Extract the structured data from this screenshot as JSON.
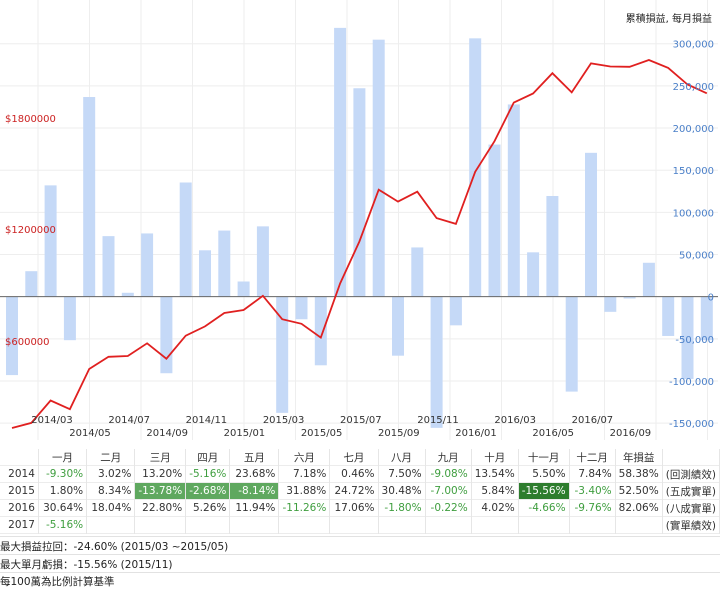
{
  "chart_data": {
    "type": "bar+line",
    "legend": "累積損益, 每月損益",
    "x_ticks_upper": [
      "2014/03",
      "2014/07",
      "2014/11",
      "2015/03",
      "2015/07",
      "2015/11",
      "2016/03",
      "2016/07"
    ],
    "x_ticks_lower": [
      "2014/05",
      "2014/09",
      "2015/01",
      "2015/05",
      "2015/09",
      "2016/01",
      "2016/05",
      "2016/09"
    ],
    "right_axis": {
      "ticks": [
        -150000,
        -100000,
        -50000,
        0,
        50000,
        100000,
        150000,
        200000,
        250000,
        300000
      ],
      "labels": [
        "-150,000",
        "-100,000",
        "-50,000",
        "0",
        "50,000",
        "100,000",
        "150,000",
        "200,000",
        "250,000",
        "300,000"
      ],
      "range": [
        -170000,
        340000
      ]
    },
    "left_axis": {
      "labels": [
        "$1800000",
        "$1200000",
        "$600000"
      ],
      "ticks": [
        1800000,
        1200000,
        600000
      ]
    },
    "monthly": [
      {
        "m": "2014/01",
        "v": -9.3
      },
      {
        "m": "2014/02",
        "v": 3.02
      },
      {
        "m": "2014/03",
        "v": 13.2
      },
      {
        "m": "2014/04",
        "v": -5.16
      },
      {
        "m": "2014/05",
        "v": 23.68
      },
      {
        "m": "2014/06",
        "v": 7.18
      },
      {
        "m": "2014/07",
        "v": 0.46
      },
      {
        "m": "2014/08",
        "v": 7.5
      },
      {
        "m": "2014/09",
        "v": -9.08
      },
      {
        "m": "2014/10",
        "v": 13.54
      },
      {
        "m": "2014/11",
        "v": 5.5
      },
      {
        "m": "2014/12",
        "v": 7.84
      },
      {
        "m": "2015/01",
        "v": 1.8
      },
      {
        "m": "2015/02",
        "v": 8.34
      },
      {
        "m": "2015/03",
        "v": -13.78
      },
      {
        "m": "2015/04",
        "v": -2.68
      },
      {
        "m": "2015/05",
        "v": -8.14
      },
      {
        "m": "2015/06",
        "v": 31.88
      },
      {
        "m": "2015/07",
        "v": 24.72
      },
      {
        "m": "2015/08",
        "v": 30.48
      },
      {
        "m": "2015/09",
        "v": -7.0
      },
      {
        "m": "2015/10",
        "v": 5.84
      },
      {
        "m": "2015/11",
        "v": -15.56
      },
      {
        "m": "2015/12",
        "v": -3.4
      },
      {
        "m": "2016/01",
        "v": 30.64
      },
      {
        "m": "2016/02",
        "v": 18.04
      },
      {
        "m": "2016/03",
        "v": 22.8
      },
      {
        "m": "2016/04",
        "v": 5.26
      },
      {
        "m": "2016/05",
        "v": 11.94
      },
      {
        "m": "2016/06",
        "v": -11.26
      },
      {
        "m": "2016/07",
        "v": 17.06
      },
      {
        "m": "2016/08",
        "v": -1.8
      },
      {
        "m": "2016/09",
        "v": -0.22
      },
      {
        "m": "2016/10",
        "v": 4.02
      },
      {
        "m": "2016/11",
        "v": -4.66
      },
      {
        "m": "2016/12",
        "v": -9.76
      },
      {
        "m": "2017/01",
        "v": -5.16
      }
    ]
  },
  "table": {
    "headers": [
      "",
      "一月",
      "二月",
      "三月",
      "四月",
      "五月",
      "六月",
      "七月",
      "八月",
      "九月",
      "十月",
      "十一月",
      "十二月",
      "年損益",
      ""
    ],
    "rows": [
      {
        "year": "2014",
        "values": [
          "-9.30%",
          "3.02%",
          "13.20%",
          "-5.16%",
          "23.68%",
          "7.18%",
          "0.46%",
          "7.50%",
          "-9.08%",
          "13.54%",
          "5.50%",
          "7.84%"
        ],
        "annual": "58.38%",
        "note": "(回測績效)"
      },
      {
        "year": "2015",
        "values": [
          "1.80%",
          "8.34%",
          "-13.78%",
          "-2.68%",
          "-8.14%",
          "31.88%",
          "24.72%",
          "30.48%",
          "-7.00%",
          "5.84%",
          "-15.56%",
          "-3.40%"
        ],
        "annual": "52.50%",
        "note": "(五成實單)"
      },
      {
        "year": "2016",
        "values": [
          "30.64%",
          "18.04%",
          "22.80%",
          "5.26%",
          "11.94%",
          "-11.26%",
          "17.06%",
          "-1.80%",
          "-0.22%",
          "4.02%",
          "-4.66%",
          "-9.76%"
        ],
        "annual": "82.06%",
        "note": "(八成實單)"
      },
      {
        "year": "2017",
        "values": [
          "-5.16%",
          "",
          "",
          "",
          "",
          "",
          "",
          "",
          "",
          "",
          "",
          ""
        ],
        "annual": "",
        "note": "(實單績效)"
      }
    ]
  },
  "stats": {
    "max_drawdown": "最大損益拉回：-24.60% (2015/03 ~2015/05)",
    "max_month_loss": "最大單月虧損：-15.56% (2015/11)",
    "basis": "每100萬為比例計算基準"
  },
  "colors": {
    "bar": "#c5d9f7",
    "line": "#e02020",
    "highlight_mid": "#5fa85f",
    "highlight_dark": "#2e7d2e",
    "negative_text": "#3f9e3f"
  }
}
